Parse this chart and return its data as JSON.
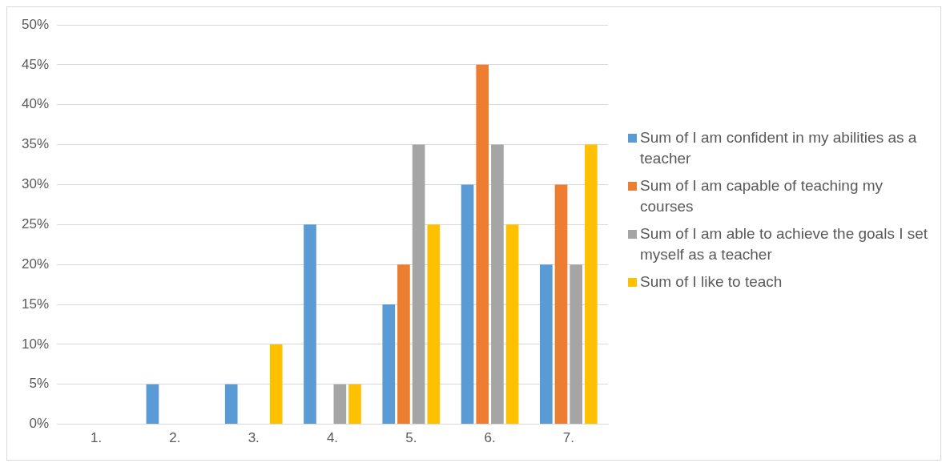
{
  "chart_data": {
    "type": "bar",
    "categories": [
      "1.",
      "2.",
      "3.",
      "4.",
      "5.",
      "6.",
      "7."
    ],
    "series": [
      {
        "name": "Sum of I am confident in my abilities as a teacher",
        "color": "#5b9bd5",
        "values": [
          0,
          5,
          5,
          25,
          15,
          30,
          20
        ]
      },
      {
        "name": "Sum of I am capable of teaching my courses",
        "color": "#ed7d31",
        "values": [
          0,
          0,
          0,
          0,
          20,
          45,
          30
        ]
      },
      {
        "name": "Sum of I am able to achieve the goals I set myself as a teacher",
        "color": "#a5a5a5",
        "values": [
          0,
          0,
          0,
          5,
          35,
          35,
          20
        ]
      },
      {
        "name": "Sum of I like to teach",
        "color": "#ffc000",
        "values": [
          0,
          0,
          10,
          5,
          25,
          25,
          35
        ]
      }
    ],
    "ylim": [
      0,
      50
    ],
    "yticks": [
      {
        "value": 0,
        "label": "0%"
      },
      {
        "value": 5,
        "label": "5%"
      },
      {
        "value": 10,
        "label": "10%"
      },
      {
        "value": 15,
        "label": "15%"
      },
      {
        "value": 20,
        "label": "20%"
      },
      {
        "value": 25,
        "label": "25%"
      },
      {
        "value": 30,
        "label": "30%"
      },
      {
        "value": 35,
        "label": "35%"
      },
      {
        "value": 40,
        "label": "40%"
      },
      {
        "value": 45,
        "label": "45%"
      },
      {
        "value": 50,
        "label": "50%"
      }
    ],
    "grid": "y",
    "legend": "right"
  }
}
